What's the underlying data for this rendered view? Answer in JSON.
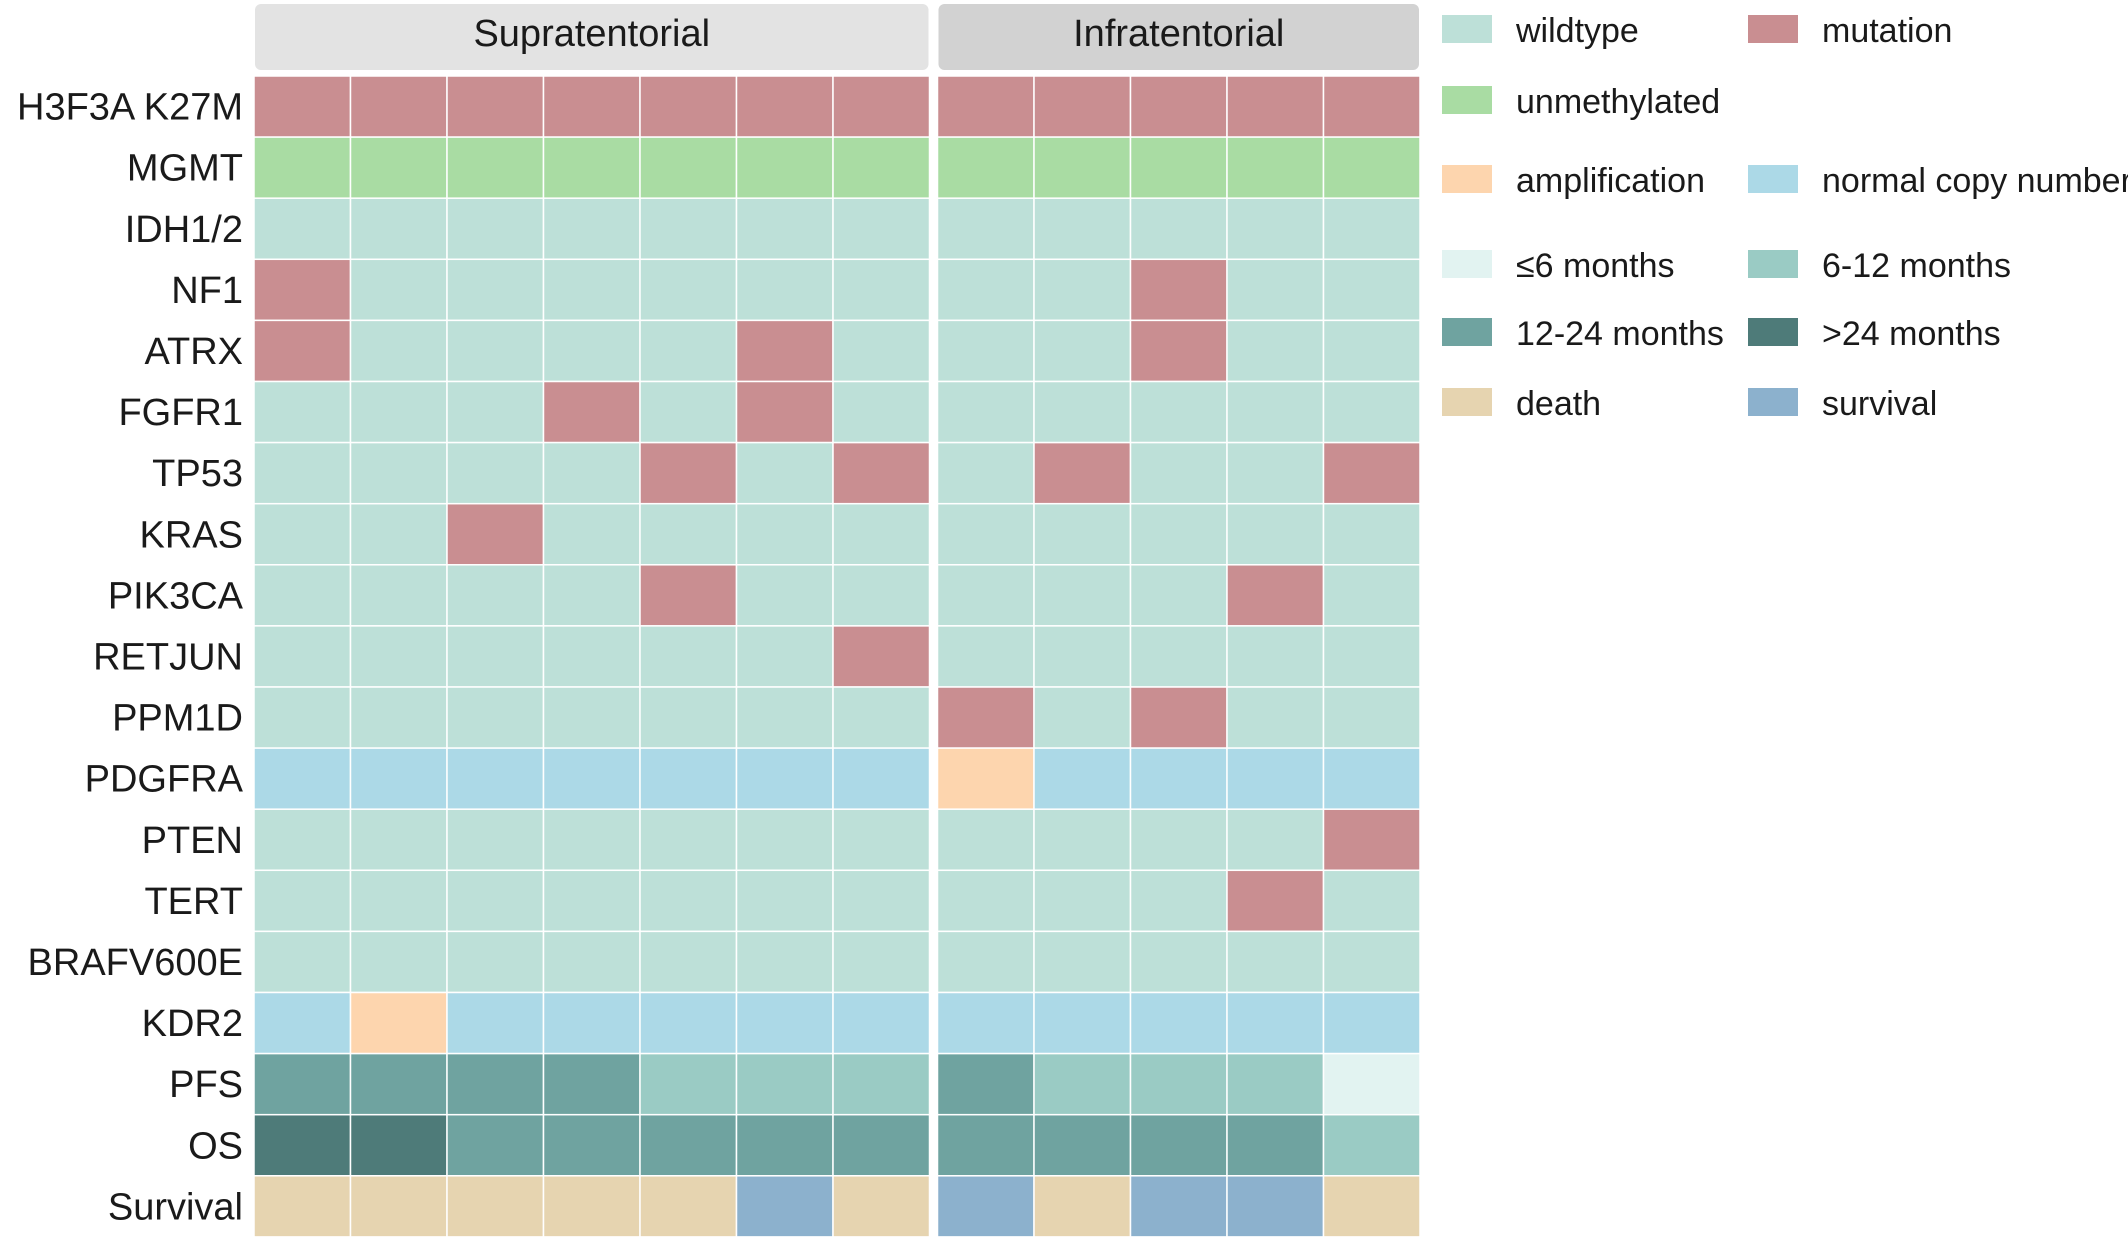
{
  "chart_data": {
    "type": "heatmap",
    "groups": [
      {
        "label": "Supratentorial",
        "columns": 7
      },
      {
        "label": "Infratentorial",
        "columns": 5
      }
    ],
    "rows": [
      "H3F3A K27M",
      "MGMT",
      "IDH1/2",
      "NF1",
      "ATRX",
      "FGFR1",
      "TP53",
      "KRAS",
      "PIK3CA",
      "RETJUN",
      "PPM1D",
      "PDGFRA",
      "PTEN",
      "TERT",
      "BRAFV600E",
      "KDR2",
      "PFS",
      "OS",
      "Survival"
    ],
    "categories": {
      "wt": {
        "label": "wildtype",
        "color": "#bde0d8"
      },
      "mut": {
        "label": "mutation",
        "color": "#c98e91"
      },
      "unm": {
        "label": "unmethylated",
        "color": "#a9dca3"
      },
      "amp": {
        "label": "amplification",
        "color": "#fdd5ae"
      },
      "ncn": {
        "label": "normal copy number",
        "color": "#acd9e7"
      },
      "m6": {
        "label": "≤6 months",
        "color": "#e2f3f1"
      },
      "m12": {
        "label": "6-12 months",
        "color": "#9acbc4"
      },
      "m24": {
        "label": "12-24 months",
        "color": "#6fa3a0"
      },
      "m24p": {
        "label": ">24 months",
        "color": "#4e7b79"
      },
      "dth": {
        "label": "death",
        "color": "#e6d4b0"
      },
      "srv": {
        "label": "survival",
        "color": "#8cb1cd"
      }
    },
    "legend_order": [
      [
        "wt",
        "mut"
      ],
      [
        "unm",
        null
      ],
      [
        "amp",
        "ncn"
      ],
      [
        "m6",
        "m12"
      ],
      [
        "m24",
        "m24p"
      ],
      [
        "dth",
        "srv"
      ]
    ],
    "values": [
      [
        "mut",
        "mut",
        "mut",
        "mut",
        "mut",
        "mut",
        "mut",
        "mut",
        "mut",
        "mut",
        "mut",
        "mut"
      ],
      [
        "unm",
        "unm",
        "unm",
        "unm",
        "unm",
        "unm",
        "unm",
        "unm",
        "unm",
        "unm",
        "unm",
        "unm"
      ],
      [
        "wt",
        "wt",
        "wt",
        "wt",
        "wt",
        "wt",
        "wt",
        "wt",
        "wt",
        "wt",
        "wt",
        "wt"
      ],
      [
        "mut",
        "wt",
        "wt",
        "wt",
        "wt",
        "wt",
        "wt",
        "wt",
        "wt",
        "mut",
        "wt",
        "wt"
      ],
      [
        "mut",
        "wt",
        "wt",
        "wt",
        "wt",
        "mut",
        "wt",
        "wt",
        "wt",
        "mut",
        "wt",
        "wt"
      ],
      [
        "wt",
        "wt",
        "wt",
        "mut",
        "wt",
        "mut",
        "wt",
        "wt",
        "wt",
        "wt",
        "wt",
        "wt"
      ],
      [
        "wt",
        "wt",
        "wt",
        "wt",
        "mut",
        "wt",
        "mut",
        "wt",
        "mut",
        "wt",
        "wt",
        "mut"
      ],
      [
        "wt",
        "wt",
        "mut",
        "wt",
        "wt",
        "wt",
        "wt",
        "wt",
        "wt",
        "wt",
        "wt",
        "wt"
      ],
      [
        "wt",
        "wt",
        "wt",
        "wt",
        "mut",
        "wt",
        "wt",
        "wt",
        "wt",
        "wt",
        "mut",
        "wt"
      ],
      [
        "wt",
        "wt",
        "wt",
        "wt",
        "wt",
        "wt",
        "mut",
        "wt",
        "wt",
        "wt",
        "wt",
        "wt"
      ],
      [
        "wt",
        "wt",
        "wt",
        "wt",
        "wt",
        "wt",
        "wt",
        "mut",
        "wt",
        "mut",
        "wt",
        "wt"
      ],
      [
        "ncn",
        "ncn",
        "ncn",
        "ncn",
        "ncn",
        "ncn",
        "ncn",
        "amp",
        "ncn",
        "ncn",
        "ncn",
        "ncn"
      ],
      [
        "wt",
        "wt",
        "wt",
        "wt",
        "wt",
        "wt",
        "wt",
        "wt",
        "wt",
        "wt",
        "wt",
        "mut"
      ],
      [
        "wt",
        "wt",
        "wt",
        "wt",
        "wt",
        "wt",
        "wt",
        "wt",
        "wt",
        "wt",
        "mut",
        "wt"
      ],
      [
        "wt",
        "wt",
        "wt",
        "wt",
        "wt",
        "wt",
        "wt",
        "wt",
        "wt",
        "wt",
        "wt",
        "wt"
      ],
      [
        "ncn",
        "amp",
        "ncn",
        "ncn",
        "ncn",
        "ncn",
        "ncn",
        "ncn",
        "ncn",
        "ncn",
        "ncn",
        "ncn"
      ],
      [
        "m24",
        "m24",
        "m24",
        "m24",
        "m12",
        "m12",
        "m12",
        "m24",
        "m12",
        "m12",
        "m12",
        "m6"
      ],
      [
        "m24p",
        "m24p",
        "m24",
        "m24",
        "m24",
        "m24",
        "m24",
        "m24",
        "m24",
        "m24",
        "m24",
        "m12"
      ],
      [
        "dth",
        "dth",
        "dth",
        "dth",
        "dth",
        "srv",
        "dth",
        "srv",
        "dth",
        "srv",
        "srv",
        "dth"
      ]
    ]
  }
}
